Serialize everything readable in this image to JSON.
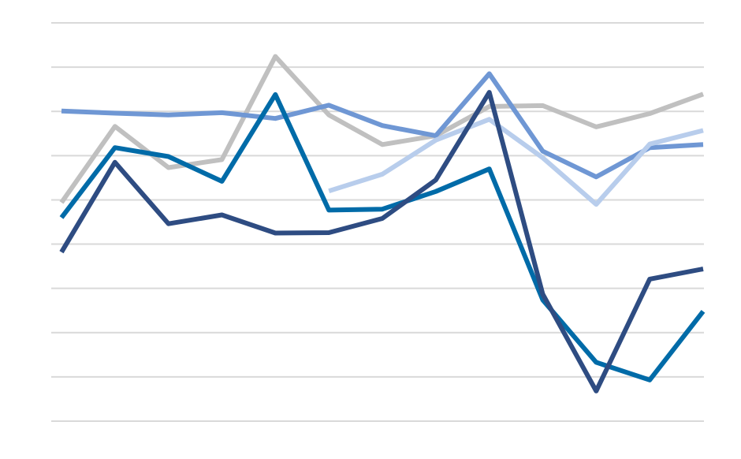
{
  "chart_data": {
    "type": "line",
    "title": "",
    "xlabel": "",
    "ylabel": "",
    "x": [
      1,
      2,
      3,
      4,
      5,
      6,
      7,
      8,
      9,
      10,
      11,
      12,
      13
    ],
    "ylim": [
      0,
      9
    ],
    "gridlines": 10,
    "grid": true,
    "legend": "none",
    "series": [
      {
        "color": "#c0c0c0",
        "values": [
          4.94,
          6.66,
          5.73,
          5.91,
          8.24,
          6.92,
          6.25,
          6.45,
          7.11,
          7.13,
          6.65,
          6.95,
          7.39
        ]
      },
      {
        "color": "#6f97d4",
        "values": [
          7.01,
          6.96,
          6.92,
          6.97,
          6.84,
          7.14,
          6.68,
          6.45,
          7.85,
          6.1,
          5.52,
          6.18,
          6.25
        ]
      },
      {
        "color": "#b8cdec",
        "values": [
          null,
          null,
          null,
          null,
          null,
          5.2,
          5.58,
          6.35,
          6.82,
          5.95,
          4.9,
          6.26,
          6.57
        ]
      },
      {
        "color": "#006ba8",
        "values": [
          4.6,
          6.18,
          5.98,
          5.42,
          7.38,
          4.77,
          4.79,
          5.19,
          5.7,
          2.74,
          1.33,
          0.93,
          2.48
        ]
      },
      {
        "color": "#2e4c82",
        "values": [
          3.82,
          5.85,
          4.46,
          4.66,
          4.25,
          4.26,
          4.58,
          5.45,
          7.43,
          2.87,
          0.68,
          3.21,
          3.44
        ]
      }
    ]
  }
}
